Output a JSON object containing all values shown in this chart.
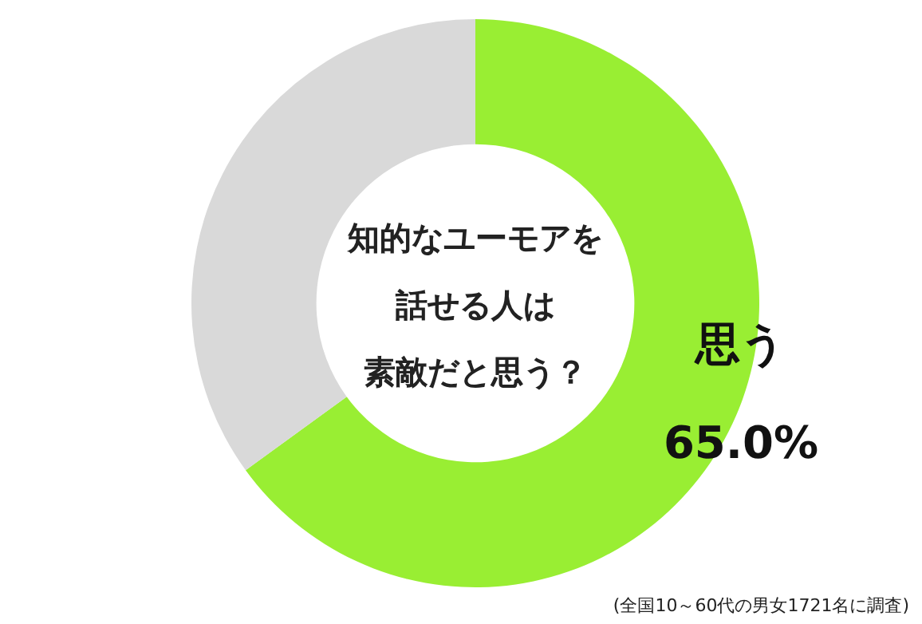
{
  "chart_data": {
    "type": "donut",
    "title": "知的なユーモアを話せる人は素敵だと思う？",
    "categories": [
      "思う",
      null
    ],
    "values": [
      65.0,
      35.0
    ],
    "colors": [
      "#99ee33",
      "#d9d9d9"
    ],
    "value_labels": [
      "65.0%",
      null
    ],
    "annotations": [
      "(全国10～60代の男女1721名に調査)"
    ]
  }
}
